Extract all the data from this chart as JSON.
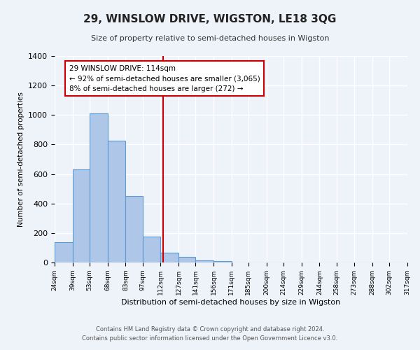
{
  "title": "29, WINSLOW DRIVE, WIGSTON, LE18 3QG",
  "subtitle": "Size of property relative to semi-detached houses in Wigston",
  "xlabel": "Distribution of semi-detached houses by size in Wigston",
  "ylabel": "Number of semi-detached properties",
  "bin_edges": [
    24,
    39,
    53,
    68,
    83,
    97,
    112,
    127,
    141,
    156,
    171,
    185,
    200,
    214,
    229,
    244,
    258,
    273,
    288,
    302,
    317
  ],
  "bar_heights": [
    140,
    630,
    1010,
    825,
    450,
    175,
    65,
    40,
    15,
    10,
    0,
    0,
    0,
    0,
    0,
    0,
    0,
    0,
    0,
    0
  ],
  "property_size": 114,
  "bar_color": "#aec6e8",
  "bar_edge_color": "#5b9bd5",
  "vline_color": "#cc0000",
  "annotation_line1": "29 WINSLOW DRIVE: 114sqm",
  "annotation_line2": "← 92% of semi-detached houses are smaller (3,065)",
  "annotation_line3": "8% of semi-detached houses are larger (272) →",
  "annotation_box_color": "#ffffff",
  "annotation_box_edge": "#cc0000",
  "ylim": [
    0,
    1400
  ],
  "yticks": [
    0,
    200,
    400,
    600,
    800,
    1000,
    1200,
    1400
  ],
  "tick_labels": [
    "24sqm",
    "39sqm",
    "53sqm",
    "68sqm",
    "83sqm",
    "97sqm",
    "112sqm",
    "127sqm",
    "141sqm",
    "156sqm",
    "171sqm",
    "185sqm",
    "200sqm",
    "214sqm",
    "229sqm",
    "244sqm",
    "258sqm",
    "273sqm",
    "288sqm",
    "302sqm",
    "317sqm"
  ],
  "footer_line1": "Contains HM Land Registry data © Crown copyright and database right 2024.",
  "footer_line2": "Contains public sector information licensed under the Open Government Licence v3.0.",
  "background_color": "#eef2f9",
  "grid_color": "#ffffff"
}
